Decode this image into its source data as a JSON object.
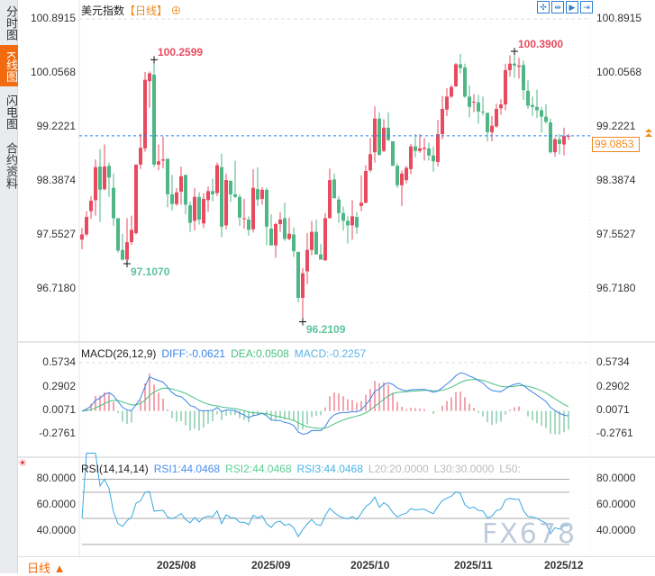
{
  "sidebar": {
    "tabs": [
      {
        "label": "分时图",
        "active": false
      },
      {
        "label": "K线图",
        "active": true
      },
      {
        "label": "闪电图",
        "active": false
      },
      {
        "label": "合约资料",
        "active": false
      }
    ]
  },
  "header": {
    "title": "美元指数",
    "timeframe": "【日线】",
    "add_icon": "circle-plus-icon",
    "tools": [
      "crosshair-icon",
      "zoom-range-icon",
      "play-step-icon",
      "jump-end-icon"
    ]
  },
  "colors": {
    "up": "#e84a5f",
    "down": "#4fb686",
    "diff": "#3a85e8",
    "dea": "#47c17f",
    "rsi": "#3aa8e0",
    "accent": "#f26b0f",
    "price_line": "#1f7ff0"
  },
  "chart_data": [
    {
      "type": "candlestick",
      "ylim": [
        96.0,
        101.0
      ],
      "y_ticks": [
        "100.8915",
        "100.0568",
        "99.2221",
        "98.3874",
        "97.5527",
        "96.7180"
      ],
      "y_tick_values": [
        100.8915,
        100.0568,
        99.2221,
        98.3874,
        97.5527,
        96.718
      ],
      "current_price": "99.0853",
      "annotations": [
        {
          "label": "100.2599",
          "index": 16,
          "kind": "high"
        },
        {
          "label": "97.1070",
          "index": 10,
          "kind": "low"
        },
        {
          "label": "96.2109",
          "index": 49,
          "kind": "low"
        },
        {
          "label": "100.3900",
          "index": 96,
          "kind": "high"
        }
      ],
      "x_labels": [
        {
          "label": "2025/08",
          "index": 16
        },
        {
          "label": "2025/09",
          "index": 37
        },
        {
          "label": "2025/10",
          "index": 59
        },
        {
          "label": "2025/11",
          "index": 82
        },
        {
          "label": "2025/12",
          "index": 102
        }
      ],
      "ohlc": [
        [
          97.48,
          97.66,
          97.33,
          97.56
        ],
        [
          97.56,
          97.92,
          97.53,
          97.83
        ],
        [
          97.92,
          98.15,
          97.8,
          98.08
        ],
        [
          98.09,
          98.72,
          97.85,
          98.6
        ],
        [
          98.61,
          98.88,
          97.75,
          98.25
        ],
        [
          98.26,
          98.95,
          98.24,
          98.61
        ],
        [
          98.62,
          98.67,
          98.14,
          98.44
        ],
        [
          98.28,
          98.5,
          97.69,
          97.81
        ],
        [
          97.81,
          97.81,
          97.28,
          97.31
        ],
        [
          97.32,
          97.57,
          97.16,
          97.17
        ],
        [
          97.17,
          97.81,
          97.107,
          97.44
        ],
        [
          97.44,
          97.85,
          97.4,
          97.63
        ],
        [
          97.58,
          98.64,
          97.56,
          98.64
        ],
        [
          98.64,
          99.12,
          98.57,
          98.9
        ],
        [
          98.89,
          100.07,
          98.84,
          99.95
        ],
        [
          99.93,
          100.08,
          99.52,
          100.05
        ],
        [
          100.03,
          100.2599,
          98.6,
          98.64
        ],
        [
          98.64,
          98.95,
          98.55,
          98.69
        ],
        [
          98.7,
          99.07,
          98.58,
          98.72
        ],
        [
          98.73,
          98.73,
          97.98,
          98.18
        ],
        [
          98.18,
          98.48,
          97.93,
          98.03
        ],
        [
          98.03,
          98.28,
          98.0,
          98.21
        ],
        [
          98.22,
          98.61,
          98.02,
          98.46
        ],
        [
          98.48,
          98.48,
          97.87,
          98.02
        ],
        [
          98.01,
          98.07,
          97.6,
          97.74
        ],
        [
          97.77,
          98.28,
          97.62,
          98.14
        ],
        [
          98.14,
          98.21,
          97.71,
          97.79
        ],
        [
          97.73,
          98.2,
          97.66,
          98.11
        ],
        [
          98.09,
          98.3,
          97.91,
          98.23
        ],
        [
          98.23,
          98.42,
          98.07,
          98.18
        ],
        [
          98.2,
          98.67,
          98.15,
          98.63
        ],
        [
          98.6,
          98.81,
          97.52,
          97.68
        ],
        [
          97.7,
          98.5,
          97.64,
          98.4
        ],
        [
          98.39,
          98.39,
          98.06,
          98.18
        ],
        [
          98.18,
          98.7,
          98.12,
          98.14
        ],
        [
          98.14,
          98.18,
          97.69,
          97.82
        ],
        [
          97.81,
          98.11,
          97.65,
          97.81
        ],
        [
          97.79,
          97.84,
          97.54,
          97.63
        ],
        [
          97.64,
          98.57,
          97.59,
          98.28
        ],
        [
          98.26,
          98.6,
          98.0,
          98.1
        ],
        [
          98.11,
          98.29,
          98.02,
          98.25
        ],
        [
          98.25,
          98.28,
          97.39,
          97.68
        ],
        [
          97.65,
          97.87,
          97.39,
          97.39
        ],
        [
          97.39,
          97.74,
          97.2,
          97.72
        ],
        [
          97.72,
          97.9,
          97.6,
          97.79
        ],
        [
          97.81,
          98.05,
          97.46,
          97.49
        ],
        [
          97.49,
          97.82,
          97.47,
          97.57
        ],
        [
          97.56,
          97.67,
          97.21,
          97.3
        ],
        [
          97.29,
          97.29,
          96.51,
          96.58
        ],
        [
          96.58,
          97.04,
          96.2109,
          96.96
        ],
        [
          96.99,
          97.58,
          96.79,
          97.32
        ],
        [
          97.32,
          97.77,
          97.24,
          97.6
        ],
        [
          97.6,
          97.79,
          97.25,
          97.25
        ],
        [
          97.25,
          97.41,
          97.17,
          97.17
        ],
        [
          97.16,
          97.89,
          97.15,
          97.81
        ],
        [
          97.81,
          98.58,
          97.81,
          98.4
        ],
        [
          98.41,
          98.5,
          98.12,
          98.12
        ],
        [
          98.1,
          98.15,
          97.74,
          97.89
        ],
        [
          97.89,
          97.99,
          97.62,
          97.77
        ],
        [
          97.77,
          97.84,
          97.42,
          97.7
        ],
        [
          97.7,
          98.09,
          97.48,
          97.84
        ],
        [
          97.83,
          97.91,
          97.57,
          97.67
        ],
        [
          98.0,
          98.47,
          97.92,
          98.05
        ],
        [
          98.05,
          98.63,
          98.04,
          98.54
        ],
        [
          98.55,
          99.05,
          98.52,
          98.8
        ],
        [
          98.83,
          99.54,
          98.67,
          99.35
        ],
        [
          99.35,
          99.45,
          98.78,
          98.79
        ],
        [
          98.85,
          99.34,
          98.83,
          99.21
        ],
        [
          99.21,
          99.45,
          99.0,
          99.02
        ],
        [
          99.0,
          99.0,
          98.62,
          98.62
        ],
        [
          98.62,
          98.66,
          98.28,
          98.32
        ],
        [
          98.32,
          98.55,
          98.0,
          98.5
        ],
        [
          98.4,
          98.62,
          98.35,
          98.59
        ],
        [
          98.57,
          98.96,
          98.49,
          98.92
        ],
        [
          98.92,
          99.11,
          98.75,
          98.85
        ],
        [
          98.85,
          99.11,
          98.82,
          98.89
        ],
        [
          98.88,
          99.05,
          98.7,
          98.9
        ],
        [
          98.89,
          98.98,
          98.7,
          98.78
        ],
        [
          98.78,
          98.92,
          98.53,
          98.69
        ],
        [
          98.68,
          99.33,
          98.61,
          99.11
        ],
        [
          99.11,
          99.7,
          99.03,
          99.5
        ],
        [
          99.49,
          99.82,
          99.39,
          99.69
        ],
        [
          99.69,
          99.87,
          99.67,
          99.84
        ],
        [
          99.85,
          100.21,
          99.84,
          100.19
        ],
        [
          100.19,
          100.35,
          100.05,
          100.13
        ],
        [
          100.14,
          100.2,
          99.67,
          99.69
        ],
        [
          99.69,
          99.86,
          99.37,
          99.53
        ],
        [
          99.61,
          99.73,
          99.45,
          99.61
        ],
        [
          99.6,
          99.72,
          99.27,
          99.46
        ],
        [
          99.46,
          99.69,
          99.4,
          99.45
        ],
        [
          99.44,
          99.44,
          99.0,
          99.14
        ],
        [
          99.14,
          99.39,
          99.0,
          99.24
        ],
        [
          99.23,
          99.58,
          99.21,
          99.5
        ],
        [
          99.51,
          99.65,
          99.41,
          99.57
        ],
        [
          99.57,
          100.2,
          99.48,
          100.1
        ],
        [
          100.1,
          100.33,
          100.0,
          100.2
        ],
        [
          100.2,
          100.39,
          99.98,
          100.17
        ],
        [
          100.15,
          100.29,
          99.97,
          100.17
        ],
        [
          100.18,
          100.25,
          99.64,
          99.79
        ],
        [
          99.78,
          99.94,
          99.5,
          99.55
        ],
        [
          99.56,
          99.69,
          99.39,
          99.53
        ],
        [
          99.53,
          99.8,
          99.36,
          99.48
        ],
        [
          99.48,
          99.53,
          99.13,
          99.38
        ],
        [
          99.38,
          99.57,
          99.27,
          99.3
        ],
        [
          99.29,
          99.35,
          98.81,
          98.83
        ],
        [
          98.83,
          99.06,
          98.76,
          99.03
        ],
        [
          99.03,
          99.11,
          98.8,
          98.96
        ],
        [
          98.95,
          99.21,
          98.78,
          99.08
        ],
        [
          99.08,
          99.11,
          99.02,
          99.0853
        ]
      ]
    },
    {
      "type": "macd",
      "label": "MACD(26,12,9)",
      "diff": "DIFF:-0.0621",
      "dea": "DEA:0.0508",
      "macd": "MACD:-0.2257",
      "y_ticks": [
        "0.5734",
        "0.2902",
        "0.0071",
        "-0.2761"
      ],
      "y_tick_values": [
        0.5734,
        0.2902,
        0.0071,
        -0.2761
      ]
    },
    {
      "type": "rsi",
      "label": "RSI(14,14,14)",
      "rsi1": "RSI1:44.0468",
      "rsi2": "RSI2:44.0468",
      "rsi3": "RSI3:44.0468",
      "l20": "L20:20.0000",
      "l30": "L30:30.0000",
      "l50": "L50:",
      "y_ticks": [
        "80.0000",
        "60.0000",
        "40.0000"
      ],
      "y_tick_values": [
        80,
        60,
        40
      ],
      "guide_levels": [
        80,
        70,
        50,
        30
      ]
    }
  ],
  "footer": {
    "period": "日线 ▲",
    "watermark": "FX678"
  }
}
